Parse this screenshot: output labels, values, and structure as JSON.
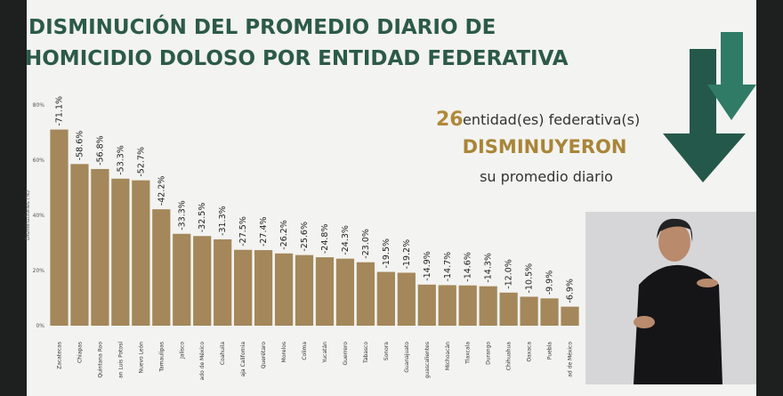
{
  "chart_data": {
    "type": "bar",
    "title": [
      "DISMINUCIÓN DEL PROMEDIO DIARIO DE",
      "HOMICIDIO DOLOSO POR ENTIDAD FEDERATIVA"
    ],
    "y_label": "Disminuciones (%)",
    "categories": [
      "Zacatecas",
      "Chiapas",
      "Quintana Roo",
      "an Luis Potosí",
      "Nuevo León",
      "Tamaulipas",
      "Jalisco",
      "ado de México",
      "Coahuila",
      "aja California",
      "Querétaro",
      "Morelos",
      "Colima",
      "Yucatán",
      "Guerrero",
      "Tabasco",
      "Sonora",
      "Guanajuato",
      "guascalientes",
      "Michoacán",
      "Tlaxcala",
      "Durango",
      "Chihuahua",
      "Oaxaca",
      "Puebla",
      "ad de México"
    ],
    "values": [
      71.1,
      58.6,
      56.8,
      53.3,
      52.7,
      42.2,
      33.3,
      32.5,
      31.3,
      27.5,
      27.4,
      26.2,
      25.6,
      24.8,
      24.3,
      23.0,
      19.5,
      19.2,
      14.9,
      14.7,
      14.6,
      14.3,
      12.0,
      10.5,
      9.9,
      6.9
    ],
    "value_labels": [
      "-71.1%",
      "-58.6%",
      "-56.8%",
      "-53.3%",
      "-52.7%",
      "-42.2%",
      "-33.3%",
      "-32.5%",
      "-31.3%",
      "-27.5%",
      "-27.4%",
      "-26.2%",
      "-25.6%",
      "-24.8%",
      "-24.3%",
      "-23.0%",
      "-19.5%",
      "-19.2%",
      "-14.9%",
      "-14.7%",
      "-14.6%",
      "-14.3%",
      "-12.0%",
      "-10.5%",
      "-9.9%",
      "-6.9%"
    ],
    "color": "#a4875a",
    "ylim": [
      0,
      80
    ],
    "yticks": [
      {
        "value": 0,
        "label": "0%"
      },
      {
        "value": 20,
        "label": "20%"
      },
      {
        "value": 40,
        "label": "40%"
      },
      {
        "value": 60,
        "label": "60%"
      },
      {
        "value": 80,
        "label": "80%"
      }
    ],
    "grid": false
  },
  "annotation": {
    "count": 26,
    "text": "entidad(es) federativa(s)",
    "emphasis": "DISMINUYERON",
    "line3": "su promedio diario"
  }
}
